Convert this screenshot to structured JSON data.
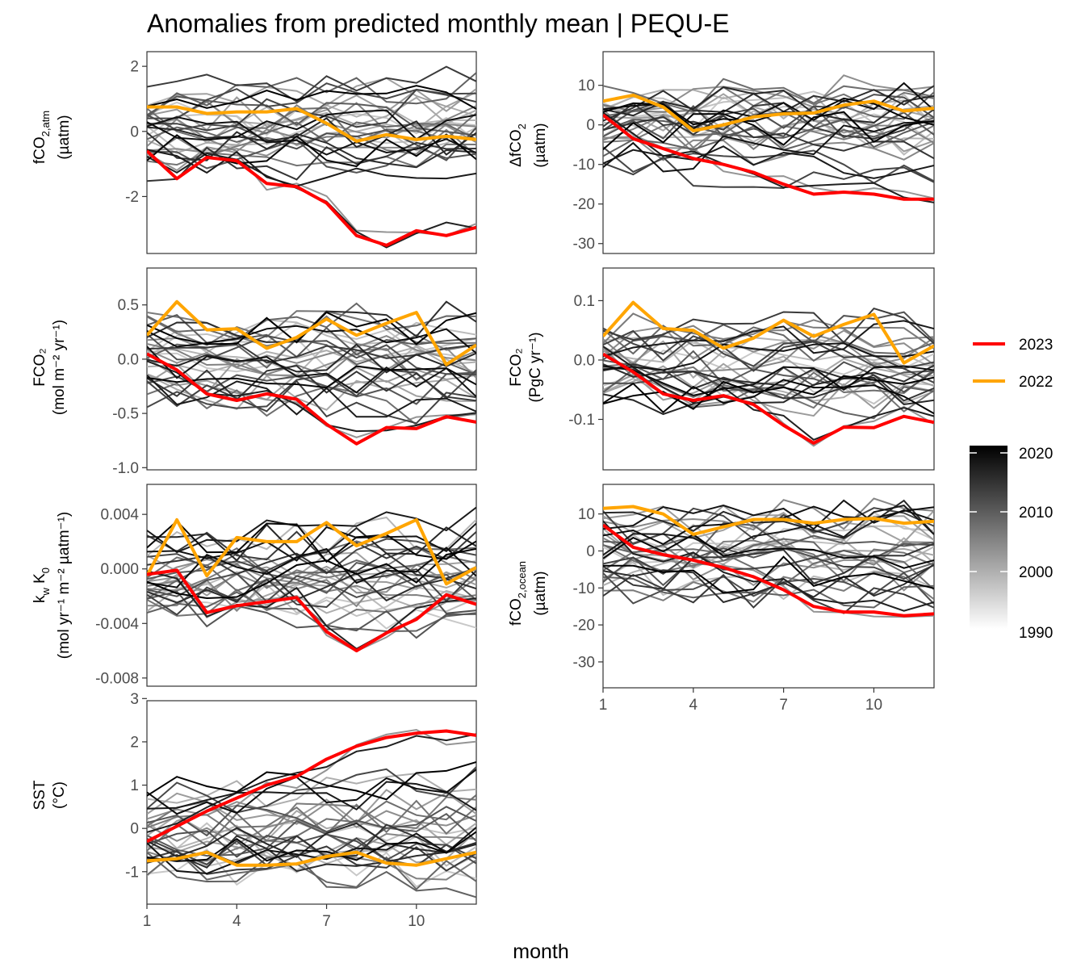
{
  "chart_data": {
    "type": "line",
    "title": "Anomalies from predicted monthly mean | PEQU-E",
    "xlabel": "month",
    "x": [
      1,
      2,
      3,
      4,
      5,
      6,
      7,
      8,
      9,
      10,
      11,
      12
    ],
    "x_ticks": [
      1,
      4,
      7,
      10
    ],
    "legend": {
      "highlight": [
        {
          "name": "2023",
          "color": "#ff0000"
        },
        {
          "name": "2022",
          "color": "#ffa500"
        }
      ],
      "colorbar": {
        "ticks": [
          "2020",
          "2010",
          "2000",
          "1990"
        ],
        "range": [
          1990,
          2021
        ],
        "low_color": "#ffffff",
        "high_color": "#000000"
      }
    },
    "background_years": [
      1990,
      1991,
      1992,
      1993,
      1994,
      1995,
      1996,
      1997,
      1998,
      1999,
      2000,
      2001,
      2002,
      2003,
      2004,
      2005,
      2006,
      2007,
      2008,
      2009,
      2010,
      2011,
      2012,
      2013,
      2014,
      2015,
      2016,
      2017,
      2018,
      2019,
      2020,
      2021
    ],
    "panels": [
      {
        "id": "fco2atm",
        "ylabel": {
          "base": "fCO",
          "sub": "2,atm",
          "line2": "(µatm)"
        },
        "ylim": [
          -3.75,
          2.45
        ],
        "yticks": [
          2,
          0,
          -2
        ],
        "ytick_labels": [
          "2",
          "0",
          "-2"
        ],
        "series": [
          {
            "name": "2023",
            "values": [
              -0.6,
              -1.45,
              -0.8,
              -0.9,
              -1.6,
              -1.7,
              -2.2,
              -3.2,
              -3.5,
              -3.05,
              -3.2,
              -2.95
            ]
          },
          {
            "name": "2022",
            "values": [
              0.75,
              0.75,
              0.55,
              0.6,
              0.6,
              0.7,
              0.25,
              -0.3,
              -0.1,
              -0.25,
              -0.15,
              -0.25
            ]
          }
        ]
      },
      {
        "id": "dfco2",
        "ylabel": {
          "base": "ΔfCO",
          "sub": "2",
          "line2": "(µatm)"
        },
        "ylim": [
          -32.5,
          18.5
        ],
        "yticks": [
          10,
          0,
          -10,
          -20,
          -30
        ],
        "ytick_labels": [
          "10",
          "0",
          "-10",
          "-20",
          "-30"
        ],
        "series": [
          {
            "name": "2023",
            "values": [
              2.5,
              -3.5,
              -6,
              -8.5,
              -10,
              -12,
              -15,
              -17.5,
              -17,
              -17.5,
              -18.8,
              -18.8
            ]
          },
          {
            "name": "2022",
            "values": [
              6,
              7.5,
              4.5,
              -1.5,
              0,
              2,
              2.8,
              3,
              5,
              6,
              3.5,
              4.2
            ]
          }
        ]
      },
      {
        "id": "fco2flux_area",
        "ylabel": {
          "line1": "FCO₂",
          "line2": "(mol m⁻² yr⁻¹)"
        },
        "ylim": [
          -1.02,
          0.84
        ],
        "yticks": [
          0.5,
          0.0,
          -0.5,
          -1.0
        ],
        "ytick_labels": [
          "0.5",
          "0.0",
          "-0.5",
          "-1.0"
        ],
        "series": [
          {
            "name": "2023",
            "values": [
              0.05,
              -0.1,
              -0.32,
              -0.38,
              -0.32,
              -0.37,
              -0.6,
              -0.78,
              -0.63,
              -0.64,
              -0.53,
              -0.58
            ]
          },
          {
            "name": "2022",
            "values": [
              0.22,
              0.53,
              0.27,
              0.28,
              0.1,
              0.2,
              0.37,
              0.22,
              0.33,
              0.43,
              -0.05,
              0.13
            ]
          }
        ]
      },
      {
        "id": "fco2flux_int",
        "ylabel": {
          "line1": "FCO₂",
          "line2": "(PgC yr⁻¹)"
        },
        "ylim": [
          -0.185,
          0.155
        ],
        "yticks": [
          0.1,
          0.0,
          -0.1
        ],
        "ytick_labels": [
          "0.1",
          "0.0",
          "-0.1"
        ],
        "series": [
          {
            "name": "2023",
            "values": [
              0.01,
              -0.02,
              -0.057,
              -0.068,
              -0.06,
              -0.075,
              -0.11,
              -0.14,
              -0.113,
              -0.114,
              -0.095,
              -0.105
            ]
          },
          {
            "name": "2022",
            "values": [
              0.04,
              0.097,
              0.053,
              0.05,
              0.02,
              0.037,
              0.067,
              0.04,
              0.06,
              0.077,
              -0.005,
              0.024
            ]
          }
        ]
      },
      {
        "id": "kwk0",
        "ylabel": {
          "line1": "k_w K_0",
          "line2": "(mol yr⁻¹ m⁻² µatm⁻¹)"
        },
        "ylim": [
          -0.0086,
          0.0062
        ],
        "yticks": [
          0.004,
          0.0,
          -0.004,
          -0.008
        ],
        "ytick_labels": [
          "0.004",
          "0.000",
          "-0.004",
          "-0.008"
        ],
        "series": [
          {
            "name": "2023",
            "values": [
              -0.0004,
              -0.0001,
              -0.0032,
              -0.0027,
              -0.0024,
              -0.0021,
              -0.0046,
              -0.006,
              -0.0047,
              -0.0037,
              -0.0019,
              -0.0026
            ]
          },
          {
            "name": "2022",
            "values": [
              -0.0005,
              0.0036,
              -0.0005,
              0.0023,
              0.002,
              0.002,
              0.0034,
              0.0017,
              0.0026,
              0.0036,
              -0.0011,
              0.0001
            ]
          }
        ]
      },
      {
        "id": "fco2ocean",
        "ylabel": {
          "base": "fCO",
          "sub": "2,ocean",
          "line2": "(µatm)"
        },
        "ylim": [
          -37,
          18
        ],
        "yticks": [
          10,
          0,
          -10,
          -20,
          -30
        ],
        "ytick_labels": [
          "10",
          "0",
          "-10",
          "-20",
          "-30"
        ],
        "series": [
          {
            "name": "2023",
            "values": [
              7,
              1,
              -1,
              -2.5,
              -4.5,
              -7,
              -10.5,
              -15,
              -16.5,
              -16.5,
              -17.5,
              -17
            ]
          },
          {
            "name": "2022",
            "values": [
              11.5,
              12,
              10,
              4.5,
              6.5,
              8.5,
              8.5,
              7.5,
              8.5,
              8.8,
              7.5,
              8
            ]
          }
        ]
      },
      {
        "id": "sst",
        "ylabel": {
          "line1": "SST",
          "line2": "(°C)"
        },
        "ylim": [
          -1.75,
          2.95
        ],
        "yticks": [
          3,
          2,
          1,
          0,
          -1
        ],
        "ytick_labels": [
          "3",
          "2",
          "1",
          "0",
          "-1"
        ],
        "series": [
          {
            "name": "2023",
            "values": [
              -0.3,
              0.05,
              0.4,
              0.7,
              1.0,
              1.2,
              1.6,
              1.9,
              2.1,
              2.2,
              2.25,
              2.15
            ]
          },
          {
            "name": "2022",
            "values": [
              -0.75,
              -0.7,
              -0.55,
              -0.85,
              -0.85,
              -0.82,
              -0.65,
              -0.55,
              -0.8,
              -0.85,
              -0.7,
              -0.55
            ]
          }
        ]
      }
    ]
  }
}
